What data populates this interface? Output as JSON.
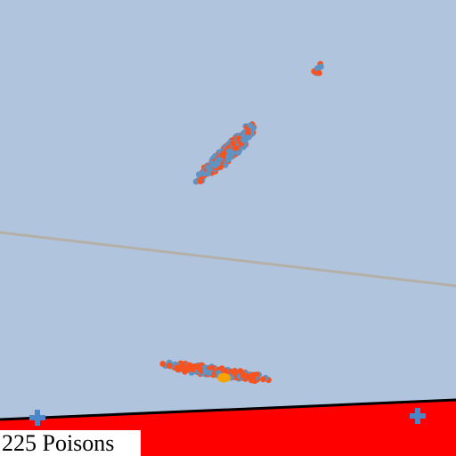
{
  "colors": {
    "background": "#b0c4de",
    "danger_zone": "#ff0000",
    "boundary_line": "#000000",
    "guide_line": "#b4b0a8",
    "dot_blue": "#5f93c4",
    "dot_orange": "#f75320",
    "dot_gold": "#f7a400",
    "marker": "#4a86c8"
  },
  "hud": {
    "poison_count": 225,
    "counter_text": "225 Poisons"
  },
  "icons": {
    "marker": "plus-icon"
  }
}
